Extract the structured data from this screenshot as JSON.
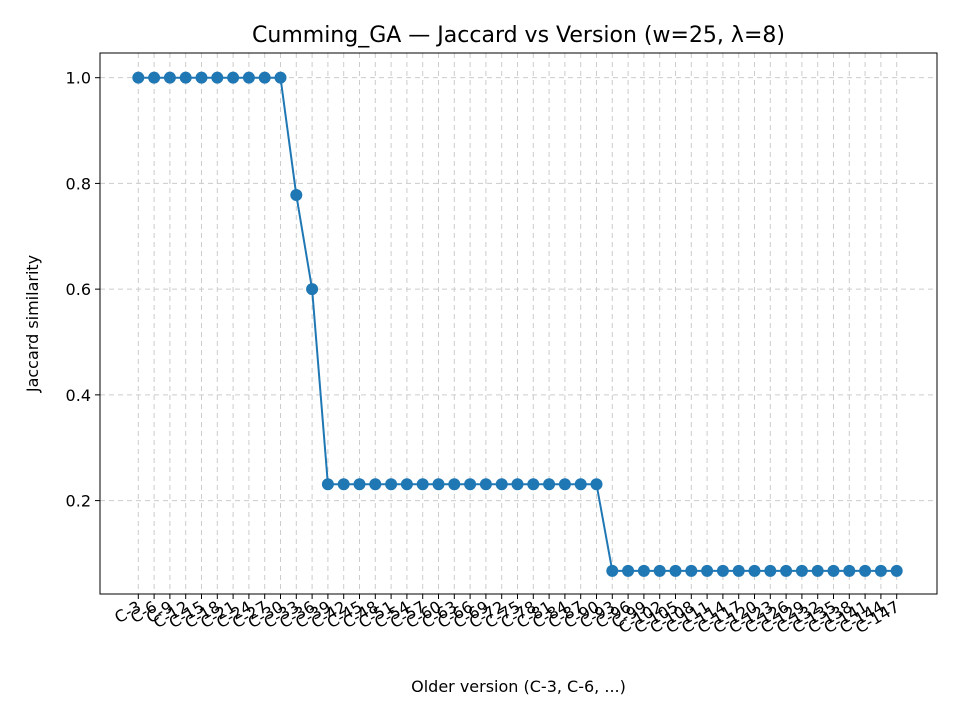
{
  "chart_data": {
    "type": "line",
    "title": "Cumming_GA — Jaccard vs Version (w=25, λ=8)",
    "xlabel": "Older version (C-3, C-6, ...)",
    "ylabel": "Jaccard similarity",
    "ylim": [
      0.0233,
      1.0467
    ],
    "yticks": [
      0.2,
      0.4,
      0.6,
      0.8,
      1.0
    ],
    "ytick_labels": [
      "0.2",
      "0.4",
      "0.6",
      "0.8",
      "1.0"
    ],
    "grid": true,
    "color": "#1f77b4",
    "categories": [
      "C-3",
      "C-6",
      "C-9",
      "C-12",
      "C-15",
      "C-18",
      "C-21",
      "C-24",
      "C-27",
      "C-30",
      "C-33",
      "C-36",
      "C-39",
      "C-42",
      "C-45",
      "C-48",
      "C-51",
      "C-54",
      "C-57",
      "C-60",
      "C-63",
      "C-66",
      "C-69",
      "C-72",
      "C-75",
      "C-78",
      "C-81",
      "C-84",
      "C-87",
      "C-90",
      "C-93",
      "C-96",
      "C-99",
      "C-102",
      "C-105",
      "C-108",
      "C-111",
      "C-114",
      "C-117",
      "C-120",
      "C-123",
      "C-126",
      "C-129",
      "C-132",
      "C-135",
      "C-138",
      "C-141",
      "C-144",
      "C-147"
    ],
    "values": [
      1.0,
      1.0,
      1.0,
      1.0,
      1.0,
      1.0,
      1.0,
      1.0,
      1.0,
      1.0,
      0.778,
      0.6,
      0.231,
      0.231,
      0.231,
      0.231,
      0.231,
      0.231,
      0.231,
      0.231,
      0.231,
      0.231,
      0.231,
      0.231,
      0.231,
      0.231,
      0.231,
      0.231,
      0.231,
      0.231,
      0.067,
      0.067,
      0.067,
      0.067,
      0.067,
      0.067,
      0.067,
      0.067,
      0.067,
      0.067,
      0.067,
      0.067,
      0.067,
      0.067,
      0.067,
      0.067,
      0.067,
      0.067,
      0.067
    ]
  }
}
